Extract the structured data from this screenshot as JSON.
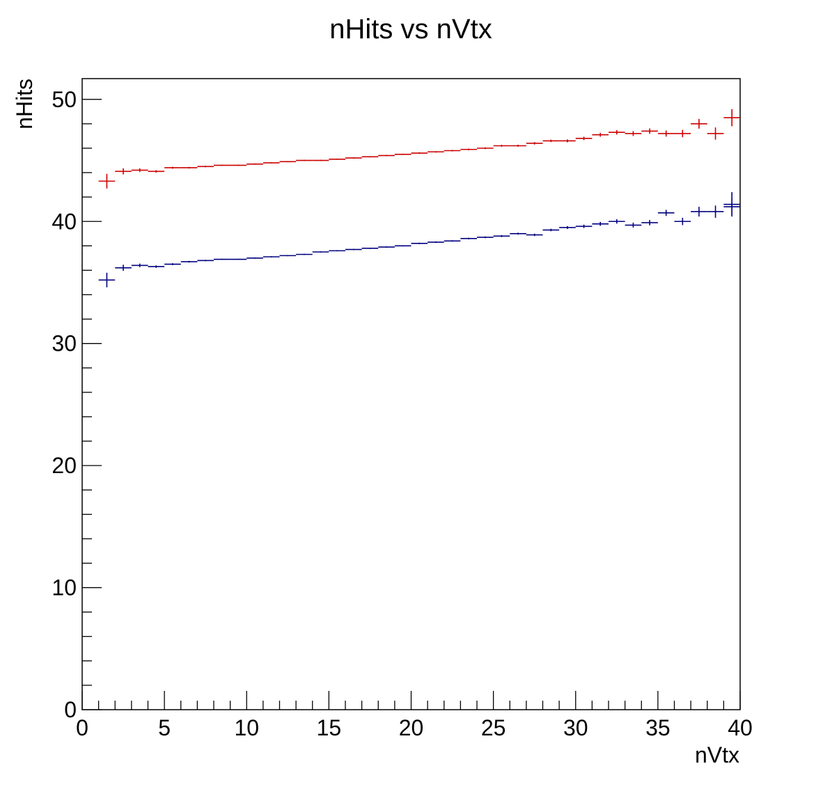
{
  "chart_data": {
    "type": "scatter",
    "title": "nHits vs nVtx",
    "xlabel": "nVtx",
    "ylabel": "nHits",
    "xlim": [
      0,
      40
    ],
    "ylim": [
      0,
      51.7
    ],
    "grid": false,
    "x_ticks": [
      0,
      5,
      10,
      15,
      20,
      25,
      30,
      35,
      40
    ],
    "y_ticks": [
      0,
      10,
      20,
      30,
      40,
      50
    ],
    "x_tick_labels": [
      "0",
      "5",
      "10",
      "15",
      "20",
      "25",
      "30",
      "35",
      "40"
    ],
    "y_tick_labels": [
      "0",
      "10",
      "20",
      "30",
      "40",
      "50"
    ],
    "bin_width": 1,
    "x": [
      1.5,
      2.5,
      3.5,
      4.5,
      5.5,
      6.5,
      7.5,
      8.5,
      9.5,
      10.5,
      11.5,
      12.5,
      13.5,
      14.5,
      15.5,
      16.5,
      17.5,
      18.5,
      19.5,
      20.5,
      21.5,
      22.5,
      23.5,
      24.5,
      25.5,
      26.5,
      27.5,
      28.5,
      29.5,
      30.5,
      31.5,
      32.5,
      33.5,
      34.5,
      35.5,
      36.5,
      37.5,
      38.5,
      39.5
    ],
    "series": [
      {
        "color": "#cc0000",
        "values": [
          43.3,
          44.1,
          44.2,
          44.1,
          44.4,
          44.4,
          44.5,
          44.6,
          44.6,
          44.7,
          44.8,
          44.9,
          45.0,
          45.0,
          45.1,
          45.2,
          45.3,
          45.4,
          45.5,
          45.6,
          45.7,
          45.8,
          45.9,
          46.0,
          46.2,
          46.2,
          46.4,
          46.6,
          46.6,
          46.8,
          47.1,
          47.3,
          47.2,
          47.4,
          47.2,
          47.2,
          48.0,
          47.2,
          48.5
        ],
        "errors": [
          0.6,
          0.25,
          0.15,
          0.1,
          0.08,
          0.07,
          0.06,
          0.05,
          0.05,
          0.05,
          0.05,
          0.05,
          0.05,
          0.05,
          0.05,
          0.05,
          0.05,
          0.05,
          0.05,
          0.06,
          0.06,
          0.06,
          0.07,
          0.07,
          0.08,
          0.08,
          0.1,
          0.1,
          0.12,
          0.14,
          0.16,
          0.18,
          0.2,
          0.22,
          0.25,
          0.3,
          0.4,
          0.5,
          0.7
        ]
      },
      {
        "color": "#000080",
        "values": [
          35.2,
          36.2,
          36.4,
          36.3,
          36.5,
          36.7,
          36.8,
          36.9,
          36.9,
          37.0,
          37.1,
          37.2,
          37.3,
          37.5,
          37.6,
          37.7,
          37.8,
          37.9,
          38.0,
          38.2,
          38.3,
          38.4,
          38.6,
          38.7,
          38.8,
          39.0,
          38.9,
          39.3,
          39.5,
          39.6,
          39.8,
          40.0,
          39.7,
          39.9,
          40.7,
          40.0,
          40.8,
          40.8,
          41.2,
          41.4
        ],
        "x_override": [
          1.5,
          2.5,
          3.5,
          4.5,
          5.5,
          6.5,
          7.5,
          8.5,
          9.5,
          10.5,
          11.5,
          12.5,
          13.5,
          14.5,
          15.5,
          16.5,
          17.5,
          18.5,
          19.5,
          20.5,
          21.5,
          22.5,
          23.5,
          24.5,
          25.5,
          26.5,
          27.5,
          28.5,
          29.5,
          30.5,
          31.5,
          32.5,
          33.5,
          34.5,
          35.5,
          36.5,
          37.5,
          38.5,
          39.5,
          39.5
        ],
        "errors": [
          0.6,
          0.25,
          0.15,
          0.1,
          0.08,
          0.07,
          0.06,
          0.05,
          0.05,
          0.05,
          0.05,
          0.05,
          0.05,
          0.05,
          0.05,
          0.05,
          0.05,
          0.05,
          0.05,
          0.06,
          0.06,
          0.06,
          0.07,
          0.07,
          0.08,
          0.08,
          0.1,
          0.1,
          0.12,
          0.14,
          0.16,
          0.18,
          0.2,
          0.22,
          0.25,
          0.3,
          0.4,
          0.5,
          0.7,
          1.0
        ]
      }
    ]
  }
}
